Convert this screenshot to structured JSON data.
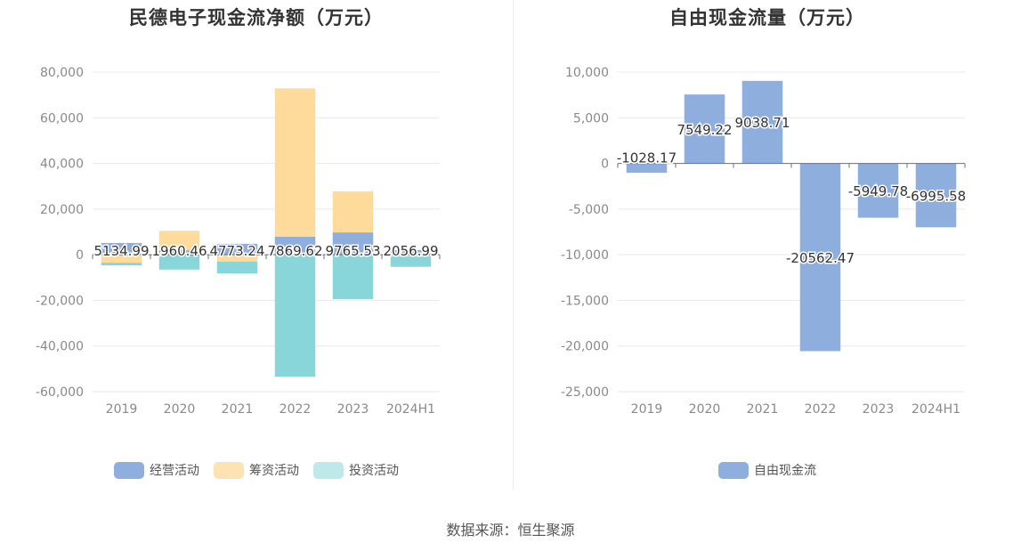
{
  "charts": {
    "left": {
      "title": "民德电子现金流净额（万元）",
      "legend": [
        {
          "label": "经营活动",
          "color": "#8eaedd"
        },
        {
          "label": "筹资活动",
          "color": "#fde2b4"
        },
        {
          "label": "投资活动",
          "color": "#bfe8ea"
        }
      ]
    },
    "right": {
      "title": "自由现金流量（万元）",
      "legend": [
        {
          "label": "自由现金流",
          "color": "#8eaedd"
        }
      ]
    }
  },
  "source": "数据来源：恒生聚源",
  "chart_data": [
    {
      "type": "bar",
      "stacked": true,
      "title": "民德电子现金流净额（万元）",
      "categories": [
        "2019",
        "2020",
        "2021",
        "2022",
        "2023",
        "2024H1"
      ],
      "ylim": [
        -60000,
        80000
      ],
      "yticks": [
        80000,
        60000,
        40000,
        20000,
        0,
        -20000,
        -40000,
        -60000
      ],
      "ytick_labels": [
        "80,000",
        "60,000",
        "40,000",
        "20,000",
        "0",
        "-20,000",
        "-40,000",
        "-60,000"
      ],
      "series": [
        {
          "name": "经营活动",
          "color": "#8eaedd",
          "values": [
            5134.99,
            1960.46,
            4773.24,
            7869.62,
            9765.53,
            2056.99
          ],
          "labels": [
            "5134.99",
            "1960.46",
            "4773.24",
            "7869.62",
            "9765.53",
            "2056.99"
          ]
        },
        {
          "name": "筹资活动",
          "color": "#fedb9a",
          "values": [
            -3500,
            8500,
            -3000,
            65000,
            18000,
            -800
          ]
        },
        {
          "name": "投资活动",
          "color": "#88d6d9",
          "values": [
            -1200,
            -6500,
            -5200,
            -53500,
            -19500,
            -4500
          ]
        }
      ],
      "grid": true,
      "legend_position": "bottom"
    },
    {
      "type": "bar",
      "title": "自由现金流量（万元）",
      "categories": [
        "2019",
        "2020",
        "2021",
        "2022",
        "2023",
        "2024H1"
      ],
      "ylim": [
        -25000,
        10000
      ],
      "yticks": [
        10000,
        5000,
        0,
        -5000,
        -10000,
        -15000,
        -20000,
        -25000
      ],
      "ytick_labels": [
        "10,000",
        "5,000",
        "0",
        "-5,000",
        "-10,000",
        "-15,000",
        "-20,000",
        "-25,000"
      ],
      "series": [
        {
          "name": "自由现金流",
          "color": "#8eaedd",
          "values": [
            -1028.17,
            7549.22,
            9038.71,
            -20562.47,
            -5949.78,
            -6995.58
          ],
          "labels": [
            "-1028.17",
            "7549.22",
            "9038.71",
            "-20562.47",
            "-5949.78",
            "-6995.58"
          ]
        }
      ],
      "grid": true,
      "legend_position": "bottom"
    }
  ]
}
